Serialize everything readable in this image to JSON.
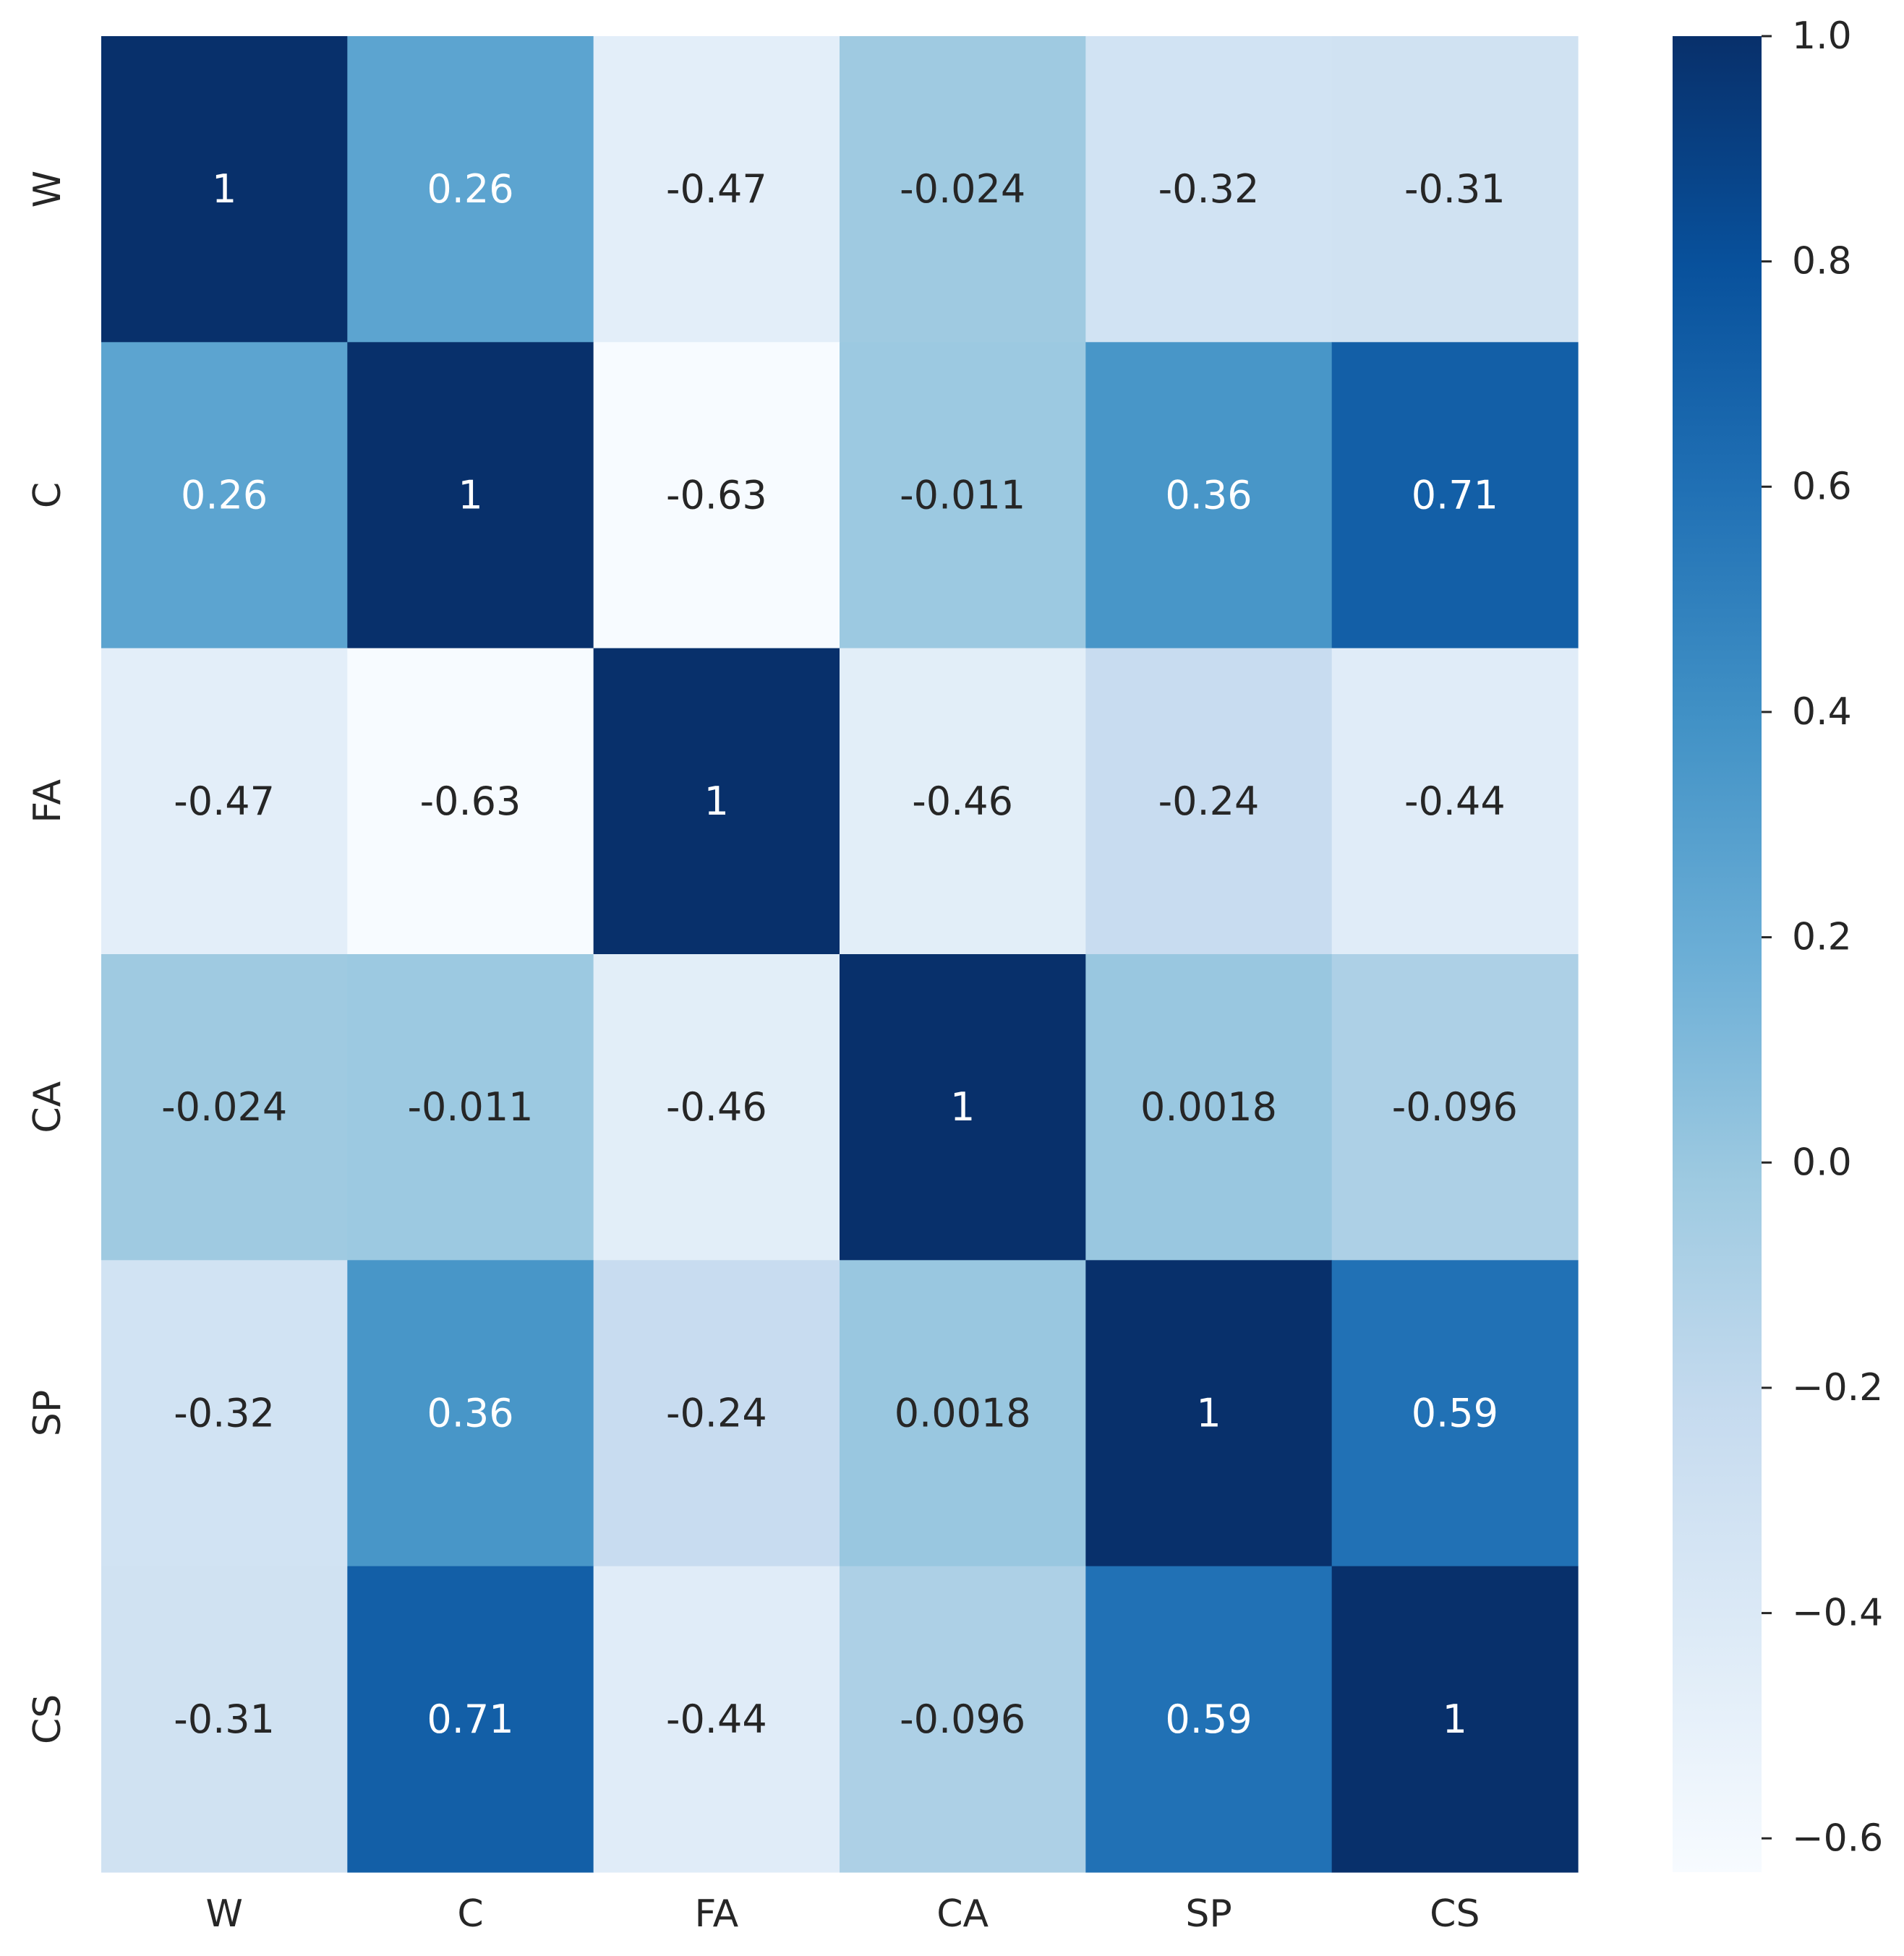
{
  "chart_data": {
    "type": "heatmap",
    "title": "",
    "xlabel": "",
    "ylabel": "",
    "x_categories": [
      "W",
      "C",
      "FA",
      "CA",
      "SP",
      "CS"
    ],
    "y_categories": [
      "W",
      "C",
      "FA",
      "CA",
      "SP",
      "CS"
    ],
    "values": [
      [
        1,
        0.26,
        -0.47,
        -0.024,
        -0.32,
        -0.31
      ],
      [
        0.26,
        1,
        -0.63,
        -0.011,
        0.36,
        0.71
      ],
      [
        -0.47,
        -0.63,
        1,
        -0.46,
        -0.24,
        -0.44
      ],
      [
        -0.024,
        -0.011,
        -0.46,
        1,
        0.0018,
        -0.096
      ],
      [
        -0.32,
        0.36,
        -0.24,
        0.0018,
        1,
        0.59
      ],
      [
        -0.31,
        0.71,
        -0.44,
        -0.096,
        0.59,
        1
      ]
    ],
    "annotations": [
      [
        "1",
        "0.26",
        "-0.47",
        "-0.024",
        "-0.32",
        "-0.31"
      ],
      [
        "0.26",
        "1",
        "-0.63",
        "-0.011",
        "0.36",
        "0.71"
      ],
      [
        "-0.47",
        "-0.63",
        "1",
        "-0.46",
        "-0.24",
        "-0.44"
      ],
      [
        "-0.024",
        "-0.011",
        "-0.46",
        "1",
        "0.0018",
        "-0.096"
      ],
      [
        "-0.32",
        "0.36",
        "-0.24",
        "0.0018",
        "1",
        "0.59"
      ],
      [
        "-0.31",
        "0.71",
        "-0.44",
        "-0.096",
        "0.59",
        "1"
      ]
    ],
    "colormap": "Blues",
    "vmin": -0.63,
    "vmax": 1.0,
    "colorbar": {
      "ticks": [
        1.0,
        0.8,
        0.6,
        0.4,
        0.2,
        0.0,
        -0.2,
        -0.4,
        -0.6
      ],
      "tick_labels": [
        "1.0",
        "0.8",
        "0.6",
        "0.4",
        "0.2",
        "0.0",
        "−0.2",
        "−0.4",
        "−0.6"
      ],
      "placement": "right"
    },
    "colors": {
      "text_dark": "#262626",
      "text_light": "#ffffff",
      "blues": [
        "#f7fbff",
        "#deebf7",
        "#c6dbef",
        "#9ecae1",
        "#6baed6",
        "#4292c6",
        "#2171b5",
        "#08519c",
        "#08306b"
      ]
    }
  }
}
